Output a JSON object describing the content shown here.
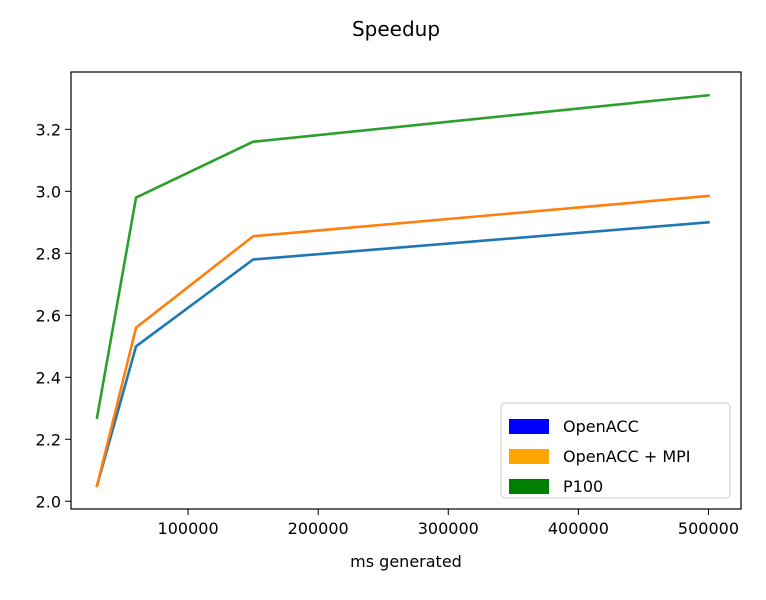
{
  "chart_data": {
    "type": "line",
    "title": "Speedup",
    "xlabel": "ms generated",
    "ylabel": "",
    "xlim": [
      10000,
      525000
    ],
    "ylim": [
      1.975,
      3.385
    ],
    "xticks": [
      100000,
      200000,
      300000,
      400000,
      500000
    ],
    "xtick_labels": [
      "100000",
      "200000",
      "300000",
      "400000",
      "500000"
    ],
    "yticks": [
      2.0,
      2.2,
      2.4,
      2.6,
      2.8,
      3.0,
      3.2
    ],
    "ytick_labels": [
      "2.0",
      "2.2",
      "2.4",
      "2.6",
      "2.8",
      "3.0",
      "3.2"
    ],
    "x": [
      30000,
      60000,
      150000,
      500000
    ],
    "series": [
      {
        "values": [
          2.05,
          2.5,
          2.78,
          2.9
        ],
        "color": "#1f77b4"
      },
      {
        "values": [
          2.05,
          2.56,
          2.855,
          2.985
        ],
        "color": "#ff7f0e"
      },
      {
        "values": [
          2.27,
          2.98,
          3.16,
          3.31
        ],
        "color": "#2ca02c"
      }
    ],
    "legend": {
      "position": "lower-right",
      "entries": [
        {
          "label": "OpenACC",
          "color": "#0000ff"
        },
        {
          "label": "OpenACC + MPI",
          "color": "#ffa500"
        },
        {
          "label": "P100",
          "color": "#008000"
        }
      ]
    },
    "grid": false
  }
}
